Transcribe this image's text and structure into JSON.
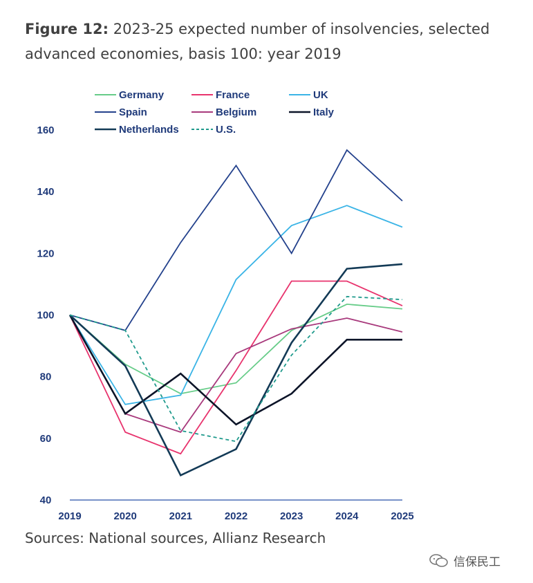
{
  "title": {
    "prefix": "Figure 12:",
    "text": " 2023-25 expected number of insolvencies, selected advanced economies, basis 100: year 2019"
  },
  "sources": "Sources: National sources, Allianz Research",
  "watermark": {
    "icon": "wechat-icon",
    "text": "信保民工"
  },
  "chart_data": {
    "type": "line",
    "title": "",
    "xlabel": "",
    "ylabel": "",
    "x": [
      "2019",
      "2020",
      "2021",
      "2022",
      "2023",
      "2024",
      "2025"
    ],
    "ylim": [
      40,
      160
    ],
    "yticks": [
      "40",
      "60",
      "80",
      "100",
      "120",
      "140",
      "160"
    ],
    "grid": false,
    "legend_position": "top",
    "series": [
      {
        "name": "Germany",
        "color": "#66cc88",
        "dash": false,
        "values": [
          100,
          84,
          74.5,
          78,
          95,
          103.5,
          102
        ]
      },
      {
        "name": "France",
        "color": "#e8336d",
        "dash": false,
        "values": [
          100,
          62,
          55,
          82,
          111,
          111,
          103
        ]
      },
      {
        "name": "UK",
        "color": "#3ab4e6",
        "dash": false,
        "values": [
          100,
          71,
          74,
          111.5,
          129,
          135.5,
          128.5
        ]
      },
      {
        "name": "Spain",
        "color": "#23418c",
        "dash": false,
        "values": [
          100,
          95,
          123.5,
          148.5,
          120,
          153.5,
          137
        ]
      },
      {
        "name": "Belgium",
        "color": "#a8397c",
        "dash": false,
        "values": [
          100,
          68,
          62,
          87.5,
          95.5,
          99,
          94.5
        ]
      },
      {
        "name": "Italy",
        "color": "#0c1428",
        "dash": false,
        "values": [
          100,
          68,
          81,
          64.5,
          74.5,
          92,
          92
        ]
      },
      {
        "name": "Netherlands",
        "color": "#133a56",
        "dash": false,
        "values": [
          100,
          83.5,
          48,
          56.5,
          91,
          115,
          116.5
        ]
      },
      {
        "name": "U.S.",
        "color": "#1f9a8c",
        "dash": true,
        "values": [
          100,
          95,
          62.5,
          59,
          87,
          106,
          105
        ]
      }
    ]
  }
}
